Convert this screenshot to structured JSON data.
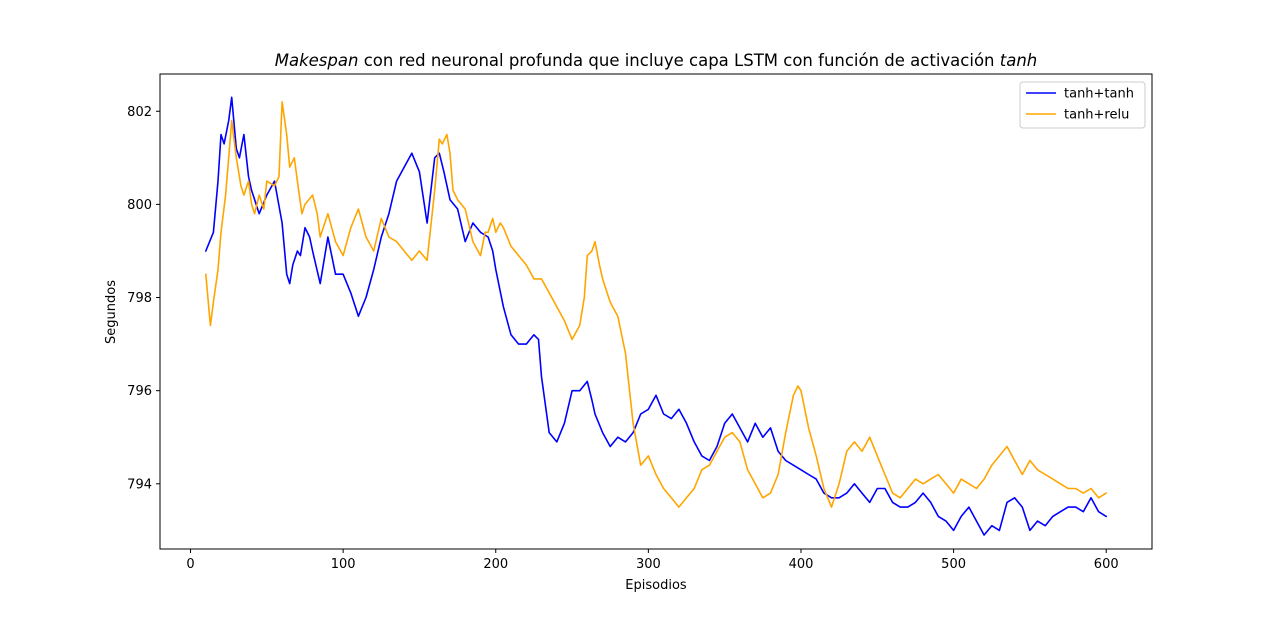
{
  "chart_data": {
    "type": "line",
    "title_parts": [
      {
        "text": "Makespan",
        "italic": true
      },
      {
        "text": " con red neuronal profunda que incluye capa LSTM con función de activación ",
        "italic": false
      },
      {
        "text": "tanh",
        "italic": true
      }
    ],
    "xlabel": "Episodios",
    "ylabel": "Segundos",
    "xlim": [
      -20,
      630
    ],
    "ylim": [
      792.6,
      802.8
    ],
    "xticks": [
      0,
      100,
      200,
      300,
      400,
      500,
      600
    ],
    "yticks": [
      794,
      796,
      798,
      800,
      802
    ],
    "legend_position": "upper right",
    "grid": false,
    "series": [
      {
        "name": "tanh+tanh",
        "color": "#0000ff",
        "x": [
          10,
          15,
          18,
          20,
          22,
          25,
          27,
          30,
          32,
          35,
          38,
          40,
          45,
          50,
          55,
          60,
          63,
          65,
          67,
          70,
          72,
          75,
          78,
          80,
          85,
          90,
          95,
          100,
          105,
          110,
          115,
          120,
          125,
          130,
          135,
          140,
          145,
          150,
          155,
          160,
          163,
          166,
          170,
          175,
          180,
          185,
          190,
          195,
          198,
          200,
          205,
          210,
          215,
          220,
          225,
          228,
          230,
          235,
          240,
          245,
          250,
          255,
          260,
          263,
          265,
          270,
          275,
          280,
          285,
          290,
          295,
          300,
          305,
          310,
          315,
          320,
          325,
          330,
          335,
          340,
          345,
          350,
          355,
          360,
          365,
          370,
          375,
          380,
          385,
          390,
          395,
          400,
          405,
          410,
          415,
          420,
          425,
          430,
          435,
          440,
          445,
          450,
          455,
          460,
          465,
          470,
          475,
          480,
          485,
          490,
          495,
          500,
          505,
          510,
          515,
          520,
          525,
          530,
          535,
          540,
          545,
          550,
          555,
          560,
          565,
          570,
          575,
          580,
          585,
          590,
          595,
          600
        ],
        "y": [
          799.0,
          799.4,
          800.5,
          801.5,
          801.3,
          801.8,
          802.3,
          801.2,
          801.0,
          801.5,
          800.6,
          800.3,
          799.8,
          800.2,
          800.5,
          799.6,
          798.5,
          798.3,
          798.7,
          799.0,
          798.9,
          799.5,
          799.3,
          799.0,
          798.3,
          799.3,
          798.5,
          798.5,
          798.1,
          797.6,
          798.0,
          798.6,
          799.3,
          799.8,
          800.5,
          800.8,
          801.1,
          800.7,
          799.6,
          801.0,
          801.1,
          800.7,
          800.1,
          799.9,
          799.2,
          799.6,
          799.4,
          799.3,
          799.0,
          798.6,
          797.8,
          797.2,
          797.0,
          797.0,
          797.2,
          797.1,
          796.3,
          795.1,
          794.9,
          795.3,
          796.0,
          796.0,
          796.2,
          795.8,
          795.5,
          795.1,
          794.8,
          795.0,
          794.9,
          795.1,
          795.5,
          795.6,
          795.9,
          795.5,
          795.4,
          795.6,
          795.3,
          794.9,
          794.6,
          794.5,
          794.8,
          795.3,
          795.5,
          795.2,
          794.9,
          795.3,
          795.0,
          795.2,
          794.7,
          794.5,
          794.4,
          794.3,
          794.2,
          794.1,
          793.8,
          793.7,
          793.7,
          793.8,
          794.0,
          793.8,
          793.6,
          793.9,
          793.9,
          793.6,
          793.5,
          793.5,
          793.6,
          793.8,
          793.6,
          793.3,
          793.2,
          793.0,
          793.3,
          793.5,
          793.2,
          792.9,
          793.1,
          793.0,
          793.6,
          793.7,
          793.5,
          793.0,
          793.2,
          793.1,
          793.3,
          793.4,
          793.5,
          793.5,
          793.4,
          793.7,
          793.4,
          793.3
        ]
      },
      {
        "name": "tanh+relu",
        "color": "#ffa500",
        "x": [
          10,
          13,
          15,
          18,
          20,
          23,
          25,
          27,
          30,
          33,
          35,
          38,
          40,
          42,
          45,
          48,
          50,
          55,
          58,
          60,
          63,
          65,
          68,
          70,
          73,
          75,
          80,
          83,
          85,
          88,
          90,
          95,
          100,
          105,
          110,
          115,
          120,
          125,
          130,
          135,
          140,
          145,
          150,
          155,
          160,
          163,
          165,
          168,
          170,
          172,
          175,
          180,
          185,
          190,
          193,
          195,
          198,
          200,
          203,
          205,
          210,
          215,
          220,
          225,
          230,
          235,
          240,
          245,
          250,
          255,
          258,
          260,
          263,
          265,
          268,
          270,
          275,
          280,
          285,
          290,
          295,
          300,
          305,
          310,
          315,
          320,
          325,
          330,
          335,
          340,
          345,
          350,
          355,
          360,
          365,
          370,
          375,
          380,
          385,
          390,
          395,
          398,
          400,
          405,
          410,
          415,
          420,
          425,
          430,
          435,
          440,
          445,
          450,
          455,
          460,
          465,
          470,
          475,
          480,
          485,
          490,
          495,
          500,
          505,
          510,
          515,
          520,
          525,
          530,
          535,
          540,
          545,
          550,
          555,
          560,
          565,
          570,
          575,
          580,
          585,
          590,
          595,
          600
        ],
        "y": [
          798.5,
          797.4,
          797.9,
          798.6,
          799.4,
          800.2,
          801.0,
          801.8,
          801.0,
          800.4,
          800.2,
          800.5,
          800.0,
          799.8,
          800.2,
          799.9,
          800.5,
          800.4,
          800.6,
          802.2,
          801.5,
          800.8,
          801.0,
          800.5,
          799.8,
          800.0,
          800.2,
          799.8,
          799.3,
          799.6,
          799.8,
          799.2,
          798.9,
          799.5,
          799.9,
          799.3,
          799.0,
          799.7,
          799.3,
          799.2,
          799.0,
          798.8,
          799.0,
          798.8,
          800.3,
          801.4,
          801.3,
          801.5,
          801.1,
          800.3,
          800.1,
          799.9,
          799.2,
          798.9,
          799.4,
          799.4,
          799.7,
          799.4,
          799.6,
          799.5,
          799.1,
          798.9,
          798.7,
          798.4,
          798.4,
          798.1,
          797.8,
          797.5,
          797.1,
          797.4,
          798.0,
          798.9,
          799.0,
          799.2,
          798.7,
          798.4,
          797.9,
          797.6,
          796.8,
          795.3,
          794.4,
          794.6,
          794.2,
          793.9,
          793.7,
          793.5,
          793.7,
          793.9,
          794.3,
          794.4,
          794.7,
          795.0,
          795.1,
          794.9,
          794.3,
          794.0,
          793.7,
          793.8,
          794.2,
          795.1,
          795.9,
          796.1,
          796.0,
          795.2,
          794.6,
          793.9,
          793.5,
          794.0,
          794.7,
          794.9,
          794.7,
          795.0,
          794.6,
          794.2,
          793.8,
          793.7,
          793.9,
          794.1,
          794.0,
          794.1,
          794.2,
          794.0,
          793.8,
          794.1,
          794.0,
          793.9,
          794.1,
          794.4,
          794.6,
          794.8,
          794.5,
          794.2,
          794.5,
          794.3,
          794.2,
          794.1,
          794.0,
          793.9,
          793.9,
          793.8,
          793.9,
          793.7,
          793.8
        ]
      }
    ]
  }
}
